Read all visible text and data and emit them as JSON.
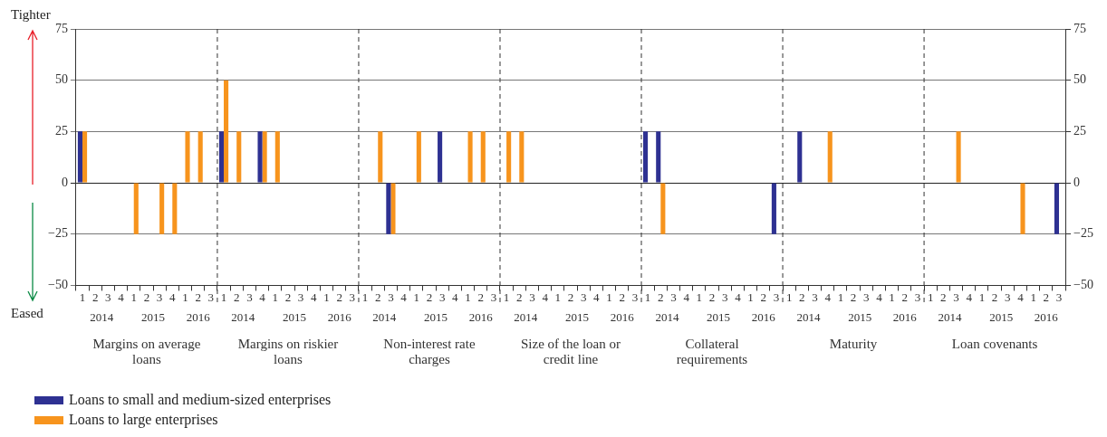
{
  "chart_data": {
    "type": "bar",
    "categories": [
      "1",
      "2",
      "3",
      "4",
      "1",
      "2",
      "3",
      "4",
      "1",
      "2",
      "3",
      "1",
      "2",
      "3",
      "4",
      "1",
      "2",
      "3",
      "4",
      "1",
      "2",
      "3",
      "1",
      "2",
      "3",
      "4",
      "1",
      "2",
      "3",
      "4",
      "1",
      "2",
      "3",
      "1",
      "2",
      "3",
      "4",
      "1",
      "2",
      "3",
      "4",
      "1",
      "2",
      "3",
      "1",
      "2",
      "3",
      "4",
      "1",
      "2",
      "3",
      "4",
      "1",
      "2",
      "3",
      "1",
      "2",
      "3",
      "4",
      "1",
      "2",
      "3",
      "4",
      "1",
      "2",
      "3",
      "1",
      "2",
      "3",
      "4",
      "1",
      "2",
      "3",
      "4",
      "1",
      "2",
      "3"
    ],
    "series": [
      {
        "name": "Loans to small and medium-sized enterprises",
        "color": "#2e3192",
        "values": [
          25,
          0,
          0,
          0,
          0,
          0,
          0,
          0,
          0,
          0,
          0,
          25,
          0,
          0,
          25,
          0,
          0,
          0,
          0,
          0,
          0,
          0,
          0,
          0,
          -25,
          0,
          0,
          0,
          25,
          0,
          0,
          0,
          0,
          0,
          0,
          0,
          0,
          0,
          0,
          0,
          0,
          0,
          0,
          0,
          25,
          25,
          0,
          0,
          0,
          0,
          0,
          0,
          0,
          0,
          -25,
          0,
          25,
          0,
          0,
          0,
          0,
          0,
          0,
          0,
          0,
          0,
          0,
          0,
          0,
          0,
          0,
          0,
          0,
          0,
          0,
          0,
          -25
        ]
      },
      {
        "name": "Loans to large enterprises",
        "color": "#f7941d",
        "values": [
          25,
          0,
          0,
          0,
          -25,
          0,
          -25,
          -25,
          25,
          25,
          0,
          50,
          25,
          0,
          25,
          25,
          0,
          0,
          0,
          0,
          0,
          0,
          0,
          25,
          -25,
          0,
          25,
          0,
          0,
          0,
          25,
          25,
          0,
          25,
          25,
          0,
          0,
          0,
          0,
          0,
          0,
          0,
          0,
          0,
          0,
          -25,
          0,
          0,
          0,
          0,
          0,
          0,
          0,
          0,
          0,
          0,
          0,
          0,
          25,
          0,
          0,
          0,
          0,
          0,
          0,
          0,
          0,
          0,
          25,
          0,
          0,
          0,
          0,
          -25,
          0,
          0,
          0
        ]
      }
    ],
    "ylim": [
      -50,
      75
    ],
    "yticks": [
      {
        "value": -50,
        "label": "−50"
      },
      {
        "value": -25,
        "label": "−25"
      },
      0,
      25,
      50,
      75
    ],
    "y2lim": [
      -50,
      75
    ],
    "y2ticks": [
      {
        "value": -50,
        "label": "−50"
      },
      {
        "value": -25,
        "label": "−25"
      },
      0,
      25,
      50,
      75
    ],
    "annotations": [
      "Tighter",
      "Eased",
      "Margins on average loans",
      "Margins on riskier loans",
      "Non-interest rate charges",
      "Size of the loan or credit line",
      "Collateral requirements",
      "Maturity",
      "Loan covenants",
      "2014",
      "2015",
      "2016",
      "2014",
      "2015",
      "2016",
      "2014",
      "2015",
      "2016",
      "2014",
      "2015",
      "2016",
      "2014",
      "2015",
      "2016",
      "2014",
      "2015",
      "2016",
      "2014",
      "2015",
      "2016"
    ],
    "grid": "y",
    "legend": "bottom left"
  }
}
